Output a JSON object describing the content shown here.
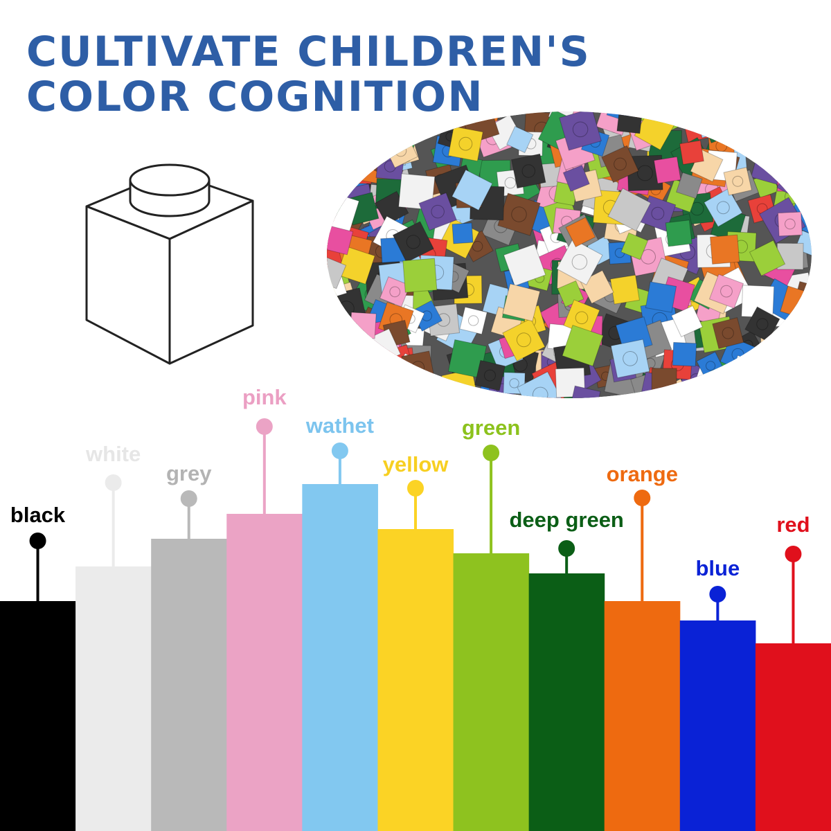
{
  "header": {
    "title_lines": [
      "CULTIVATE CHILDREN'S",
      "COLOR COGNITION"
    ]
  },
  "colors": [
    {
      "label": "black"
    },
    {
      "label": "white"
    },
    {
      "label": "grey"
    },
    {
      "label": "pink"
    },
    {
      "label": "wathet"
    },
    {
      "label": "yellow"
    },
    {
      "label": "green"
    },
    {
      "label": "deep green"
    },
    {
      "label": "orange"
    },
    {
      "label": "blue"
    },
    {
      "label": "red"
    }
  ]
}
